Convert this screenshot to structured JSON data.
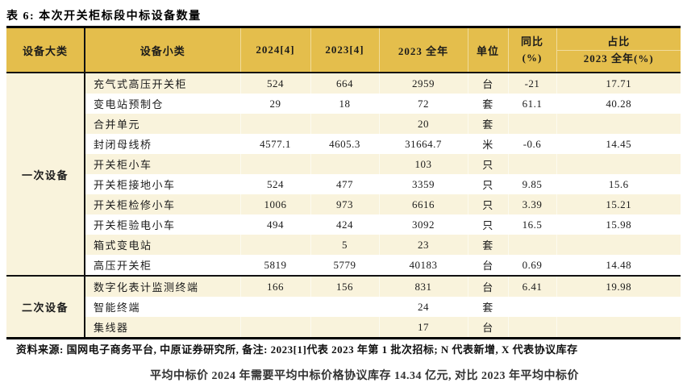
{
  "page": {
    "title": "表 6: 本次开关柜标段中标设备数量"
  },
  "colors": {
    "header_gold": "#E4BE4C",
    "row_cream": "#F9F3DC",
    "border_black": "#000000",
    "text": "#1B1B1B"
  },
  "table": {
    "headers": {
      "category": "设备大类",
      "subcategory": "设备小类",
      "y2024": "2024[4]",
      "y2023": "2023[4]",
      "y2023_full": "2023 全年",
      "unit": "单位",
      "yoy_line1": "同比",
      "yoy_line2": "(%)",
      "share_line1": "占比",
      "share_line2": "2023 全年(%)"
    },
    "sections": [
      {
        "category": "一次设备",
        "rows": [
          [
            "充气式高压开关柜",
            "524",
            "664",
            "2959",
            "台",
            "-21",
            "17.71"
          ],
          [
            "变电站预制仓",
            "29",
            "18",
            "72",
            "套",
            "61.1",
            "40.28"
          ],
          [
            "合并单元",
            "",
            "",
            "20",
            "套",
            "",
            ""
          ],
          [
            "封闭母线桥",
            "4577.1",
            "4605.3",
            "31664.7",
            "米",
            "-0.6",
            "14.45"
          ],
          [
            "开关柜小车",
            "",
            "",
            "103",
            "只",
            "",
            ""
          ],
          [
            "开关柜接地小车",
            "524",
            "477",
            "3359",
            "只",
            "9.85",
            "15.6"
          ],
          [
            "开关柜检修小车",
            "1006",
            "973",
            "6616",
            "只",
            "3.39",
            "15.21"
          ],
          [
            "开关柜验电小车",
            "494",
            "424",
            "3092",
            "只",
            "16.5",
            "15.98"
          ],
          [
            "箱式变电站",
            "",
            "5",
            "23",
            "套",
            "",
            ""
          ],
          [
            "高压开关柜",
            "5819",
            "5779",
            "40183",
            "台",
            "0.69",
            "14.48"
          ]
        ]
      },
      {
        "category": "二次设备",
        "rows": [
          [
            "数字化表计监测终端",
            "166",
            "156",
            "831",
            "台",
            "6.41",
            "19.98"
          ],
          [
            "智能终端",
            "",
            "",
            "24",
            "套",
            "",
            ""
          ],
          [
            "集线器",
            "",
            "",
            "17",
            "台",
            "",
            ""
          ]
        ]
      }
    ]
  },
  "footer": {
    "source_note": "资料来源: 国网电子商务平台, 中原证券研究所, 备注: 2023[1]代表 2023 年第 1 批次招标; N 代表新增, X 代表协议库存"
  },
  "partial_line": {
    "text": "平均中标价 2024 年需要平均中标价格协议库存 14.34 亿元, 对比 2023 年平均中标价"
  }
}
